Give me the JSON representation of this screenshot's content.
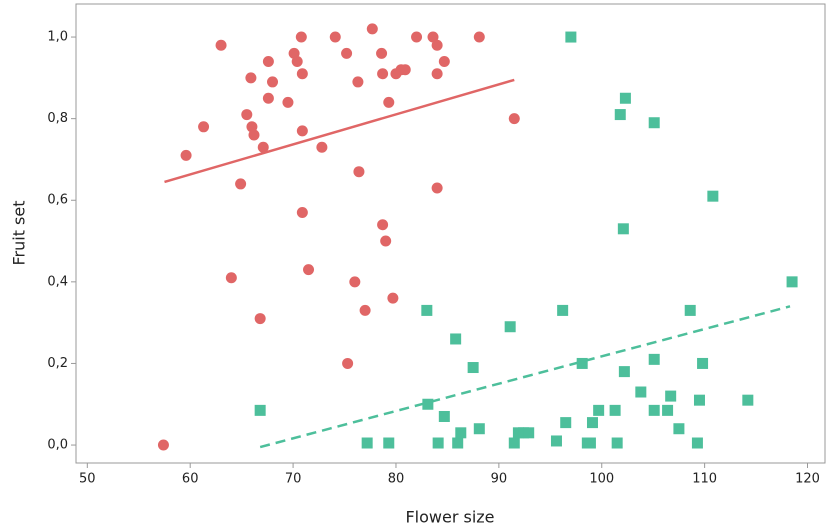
{
  "chart_data": {
    "type": "scatter",
    "xlabel": "Flower size",
    "ylabel": "Fruit set",
    "xlim": [
      48.9,
      121.7
    ],
    "ylim": [
      -0.044,
      1.081
    ],
    "xticks": [
      50,
      60,
      70,
      80,
      90,
      100,
      110,
      120
    ],
    "yticks": [
      {
        "value": 0,
        "label": "0,0"
      },
      {
        "value": 0.2,
        "label": "0,2"
      },
      {
        "value": 0.4,
        "label": "0,4"
      },
      {
        "value": 0.6,
        "label": "0,6"
      },
      {
        "value": 0.8,
        "label": "0,8"
      },
      {
        "value": 1.0,
        "label": "1,0"
      }
    ],
    "series": [
      {
        "color": "#e06666",
        "marker": "circle",
        "line_style": "solid",
        "x": [
          57.4,
          59.6,
          61.3,
          63.0,
          64.0,
          64.9,
          65.5,
          65.9,
          66.0,
          66.2,
          66.8,
          67.1,
          67.6,
          67.6,
          68.0,
          69.5,
          70.1,
          70.4,
          70.8,
          70.9,
          70.9,
          70.9,
          71.5,
          72.8,
          74.1,
          75.2,
          75.3,
          76.0,
          76.3,
          76.4,
          77.0,
          77.7,
          78.6,
          78.7,
          78.7,
          79.0,
          79.3,
          79.7,
          80.0,
          80.5,
          80.9,
          82.0,
          83.6,
          84.0,
          84.0,
          84.0,
          84.7,
          88.1,
          91.5
        ],
        "values": [
          0.0,
          0.71,
          0.78,
          0.98,
          0.41,
          0.64,
          0.81,
          0.9,
          0.78,
          0.76,
          0.31,
          0.73,
          0.94,
          0.85,
          0.89,
          0.84,
          0.96,
          0.94,
          1.0,
          0.91,
          0.77,
          0.57,
          0.43,
          0.73,
          1.0,
          0.96,
          0.2,
          0.4,
          0.89,
          0.67,
          0.33,
          1.02,
          0.96,
          0.91,
          0.54,
          0.5,
          0.84,
          0.36,
          0.91,
          0.92,
          0.92,
          1.0,
          1.0,
          0.98,
          0.91,
          0.63,
          0.94,
          1.0,
          0.8
        ],
        "trendline": {
          "x": [
            57.5,
            91.5
          ],
          "values": [
            0.645,
            0.895
          ]
        }
      },
      {
        "color": "#4dbf9b",
        "marker": "square",
        "line_style": "dashed",
        "x": [
          66.8,
          77.2,
          79.3,
          83.0,
          83.1,
          84.1,
          84.7,
          85.8,
          86.0,
          86.3,
          87.5,
          88.1,
          91.1,
          91.5,
          91.9,
          92.4,
          92.9,
          95.6,
          96.2,
          96.5,
          97.0,
          98.1,
          98.6,
          98.9,
          99.1,
          99.7,
          101.3,
          101.5,
          101.8,
          102.2,
          102.1,
          102.3,
          103.8,
          105.1,
          105.1,
          105.1,
          106.4,
          106.7,
          107.5,
          108.6,
          109.3,
          109.5,
          109.8,
          110.8,
          114.2,
          118.5
        ],
        "values": [
          0.085,
          0.005,
          0.005,
          0.33,
          0.1,
          0.005,
          0.07,
          0.26,
          0.005,
          0.03,
          0.19,
          0.04,
          0.29,
          0.005,
          0.03,
          0.03,
          0.03,
          0.01,
          0.33,
          0.055,
          1.0,
          0.2,
          0.005,
          0.005,
          0.055,
          0.085,
          0.085,
          0.005,
          0.81,
          0.18,
          0.53,
          0.85,
          0.13,
          0.21,
          0.79,
          0.085,
          0.085,
          0.12,
          0.04,
          0.33,
          0.005,
          0.11,
          0.2,
          0.61,
          0.11,
          0.4
        ],
        "trendline": {
          "x": [
            66.8,
            118.3
          ],
          "values": [
            -0.005,
            0.34
          ]
        }
      }
    ]
  }
}
